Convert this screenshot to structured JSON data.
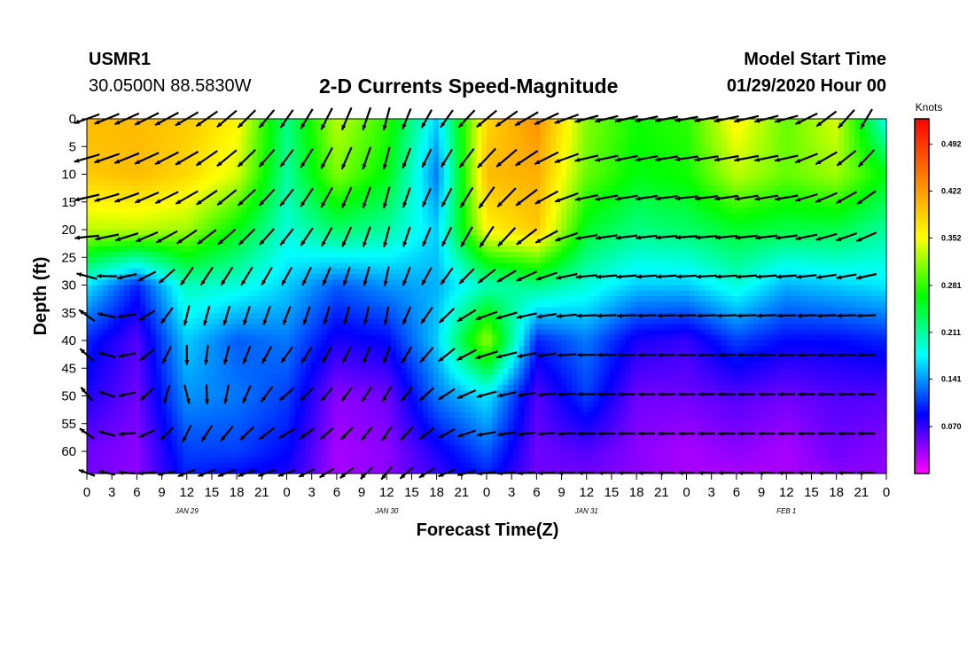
{
  "header": {
    "station_id": "USMR1",
    "coordinates": "30.0500N 88.5830W",
    "title": "2-D Currents Speed-Magnitude",
    "start_time_label": "Model Start Time",
    "start_time_value": "01/29/2020 Hour 00"
  },
  "chart_data": {
    "type": "heatmap",
    "title": "2-D Currents Speed-Magnitude",
    "xlabel": "Forecast Time(Z)",
    "ylabel": "Depth (ft)",
    "x_ticks": [
      "0",
      "3",
      "6",
      "9",
      "12",
      "15",
      "18",
      "21",
      "0",
      "3",
      "6",
      "9",
      "12",
      "15",
      "18",
      "21",
      "0",
      "3",
      "6",
      "9",
      "12",
      "15",
      "18",
      "21",
      "0",
      "3",
      "6",
      "9",
      "12",
      "15",
      "18",
      "21",
      "0"
    ],
    "date_labels": [
      {
        "label": "JAN 29",
        "hour": 12
      },
      {
        "label": "JAN 30",
        "hour": 36
      },
      {
        "label": "JAN 31",
        "hour": 60
      },
      {
        "label": "FEB 1",
        "hour": 84
      }
    ],
    "xlim_hours": [
      0,
      96
    ],
    "y_ticks": [
      0,
      5,
      10,
      15,
      20,
      25,
      30,
      35,
      40,
      45,
      50,
      55,
      60
    ],
    "ylim": [
      0,
      64
    ],
    "y_inverted": true,
    "colorbar": {
      "title": "Knots",
      "ticks": [
        "0.070",
        "0.141",
        "0.211",
        "0.281",
        "0.352",
        "0.422",
        "0.492"
      ],
      "range": [
        0.0,
        0.53
      ],
      "colors": [
        "#ff00ff",
        "#0000ff",
        "#00ffff",
        "#00ff00",
        "#ffff00",
        "#ff8000",
        "#ff0000"
      ]
    },
    "speed_grid": {
      "x_hours": [
        0,
        6,
        12,
        18,
        24,
        30,
        36,
        42,
        48,
        54,
        60,
        66,
        72,
        78,
        84,
        90,
        96
      ],
      "depths": [
        0,
        10,
        20,
        30,
        40,
        50,
        60,
        64
      ],
      "values": [
        [
          0.4,
          0.4,
          0.39,
          0.36,
          0.22,
          0.33,
          0.28,
          0.16,
          0.38,
          0.43,
          0.31,
          0.27,
          0.28,
          0.36,
          0.3,
          0.34,
          0.18
        ],
        [
          0.39,
          0.4,
          0.38,
          0.34,
          0.21,
          0.31,
          0.26,
          0.13,
          0.4,
          0.41,
          0.3,
          0.26,
          0.27,
          0.33,
          0.3,
          0.32,
          0.26
        ],
        [
          0.33,
          0.33,
          0.32,
          0.26,
          0.19,
          0.23,
          0.21,
          0.16,
          0.36,
          0.39,
          0.25,
          0.22,
          0.23,
          0.25,
          0.24,
          0.24,
          0.21
        ],
        [
          0.17,
          0.1,
          0.2,
          0.19,
          0.16,
          0.12,
          0.14,
          0.15,
          0.2,
          0.22,
          0.19,
          0.16,
          0.16,
          0.19,
          0.15,
          0.16,
          0.17
        ],
        [
          0.1,
          0.06,
          0.16,
          0.12,
          0.13,
          0.08,
          0.09,
          0.16,
          0.32,
          0.1,
          0.13,
          0.08,
          0.07,
          0.11,
          0.09,
          0.09,
          0.1
        ],
        [
          0.08,
          0.05,
          0.14,
          0.13,
          0.11,
          0.04,
          0.05,
          0.13,
          0.17,
          0.06,
          0.11,
          0.05,
          0.05,
          0.06,
          0.05,
          0.06,
          0.06
        ],
        [
          0.05,
          0.04,
          0.11,
          0.11,
          0.09,
          0.03,
          0.04,
          0.08,
          0.12,
          0.05,
          0.06,
          0.04,
          0.03,
          0.04,
          0.03,
          0.05,
          0.04
        ],
        [
          0.05,
          0.04,
          0.1,
          0.09,
          0.08,
          0.03,
          0.04,
          0.07,
          0.1,
          0.05,
          0.05,
          0.04,
          0.03,
          0.03,
          0.03,
          0.04,
          0.04
        ]
      ]
    },
    "direction_grid": {
      "x_hours": [
        0,
        12,
        24,
        36,
        48,
        60,
        72,
        84,
        96
      ],
      "depths": [
        0,
        20,
        35,
        50,
        64
      ],
      "angles_deg_cw_from_east": [
        [
          160,
          150,
          125,
          105,
          140,
          165,
          170,
          165,
          110
        ],
        [
          170,
          150,
          130,
          105,
          120,
          170,
          175,
          172,
          150
        ],
        [
          215,
          105,
          110,
          100,
          160,
          178,
          178,
          178,
          178
        ],
        [
          230,
          75,
          140,
          120,
          165,
          180,
          180,
          180,
          180
        ],
        [
          200,
          160,
          160,
          130,
          175,
          180,
          180,
          180,
          180
        ]
      ]
    }
  }
}
